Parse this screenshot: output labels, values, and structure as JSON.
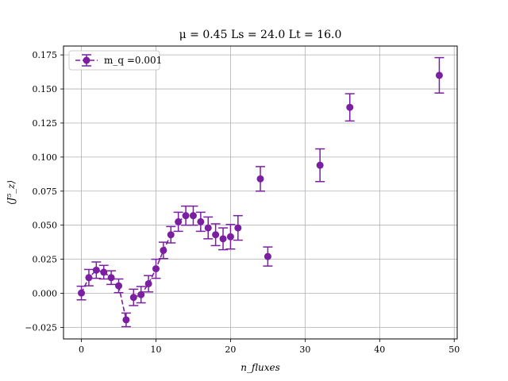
{
  "chart_data": {
    "type": "scatter",
    "title": "μ = 0.45 Ls = 24.0 Lt = 16.0",
    "xlabel": "n_fluxes",
    "ylabel": "⟨J⁵_z⟩",
    "xlim": [
      -2.4,
      50.4
    ],
    "ylim": [
      -0.0335,
      0.1815
    ],
    "xticks": [
      0,
      10,
      20,
      30,
      40,
      50
    ],
    "yticks": [
      -0.025,
      0.0,
      0.025,
      0.05,
      0.075,
      0.1,
      0.125,
      0.15,
      0.175
    ],
    "ytick_labels": [
      "−0.025",
      "0.000",
      "0.025",
      "0.050",
      "0.075",
      "0.100",
      "0.125",
      "0.150",
      "0.175"
    ],
    "grid": true,
    "legend_position": "top-left",
    "series": [
      {
        "name": "m_q =0.001",
        "color": "#7b1fa2",
        "marker": "circle",
        "errorbars": true,
        "dashed_segments": [
          [
            0,
            4
          ],
          [
            5,
            6
          ],
          [
            7,
            12
          ],
          [
            13,
            14
          ]
        ],
        "x": [
          0,
          1,
          2,
          3,
          4,
          5,
          6,
          7,
          8,
          9,
          10,
          11,
          12,
          13,
          14,
          15,
          16,
          17,
          18,
          19,
          20,
          21,
          24,
          25,
          32,
          36,
          48
        ],
        "y": [
          0.0002,
          0.0115,
          0.017,
          0.0155,
          0.0115,
          0.0055,
          -0.0195,
          -0.003,
          -0.001,
          0.007,
          0.018,
          0.0315,
          0.043,
          0.0525,
          0.057,
          0.057,
          0.0525,
          0.048,
          0.043,
          0.04,
          0.0415,
          0.048,
          0.084,
          0.027,
          0.094,
          0.1365,
          0.16
        ],
        "yerr": [
          0.005,
          0.006,
          0.006,
          0.005,
          0.005,
          0.005,
          0.005,
          0.006,
          0.006,
          0.006,
          0.007,
          0.006,
          0.006,
          0.007,
          0.007,
          0.007,
          0.007,
          0.008,
          0.008,
          0.008,
          0.009,
          0.009,
          0.009,
          0.007,
          0.012,
          0.01,
          0.013
        ]
      }
    ]
  }
}
